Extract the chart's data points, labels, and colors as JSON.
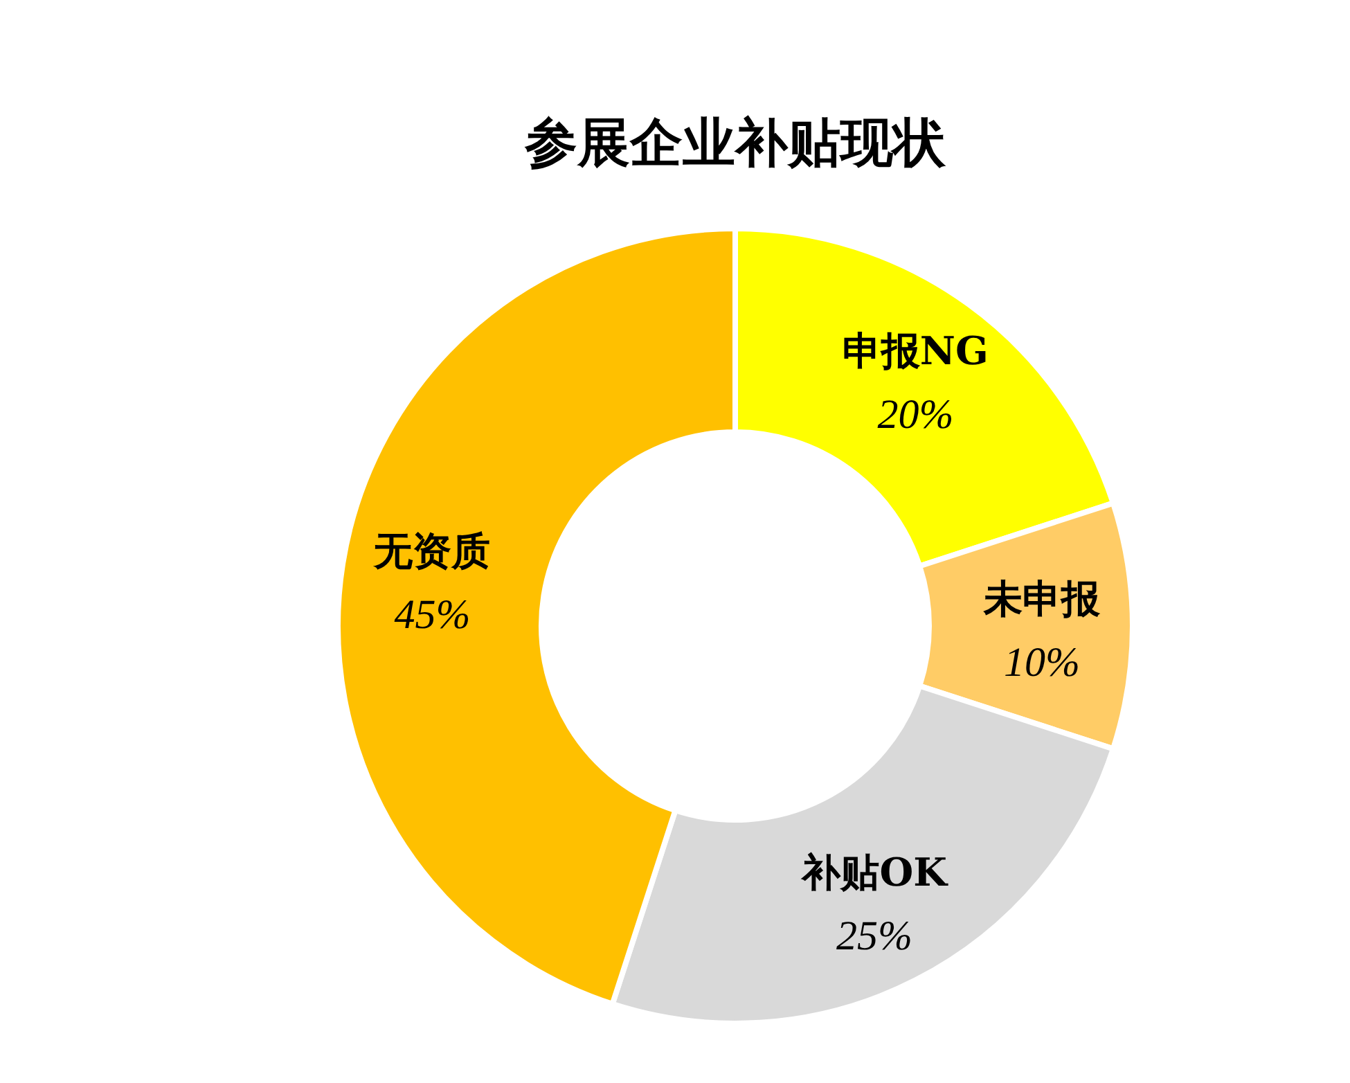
{
  "chart_data": {
    "type": "donut",
    "title": "参展企业补贴现状",
    "categories": [
      "申报NG",
      "未申报",
      "补贴OK",
      "无资质"
    ],
    "values": [
      20,
      10,
      25,
      45
    ],
    "value_labels": [
      "20%",
      "10%",
      "25%",
      "45%"
    ],
    "colors": [
      "#ffff00",
      "#ffcc66",
      "#d9d9d9",
      "#ffc000"
    ]
  }
}
